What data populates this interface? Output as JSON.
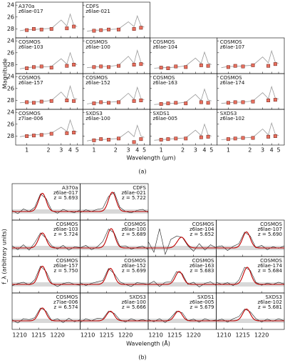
{
  "figure_a": {
    "xlabel": "Wavelength (μm)",
    "ylabel": "Magnitude",
    "caption": "(a)",
    "xlim": [
      0.7,
      6
    ],
    "ylim": [
      23.5,
      29.5
    ],
    "invert_y": true,
    "log_x": true,
    "xticks": [
      1,
      2,
      3,
      4,
      5
    ],
    "yticks": [
      24,
      26,
      28
    ],
    "phot_wavelength": [
      1.0,
      1.25,
      1.6,
      2.2,
      3.6,
      4.5
    ],
    "model_wavelength": [
      0.8,
      1.0,
      1.25,
      1.6,
      2.2,
      3.0,
      3.6,
      4.0,
      4.5,
      5.0
    ],
    "point_color": "#e8705f",
    "model_color": "#9a9a9a"
  },
  "figure_b": {
    "xlabel": "Wavelength (Å)",
    "ylabel": "f_λ (arbitrary units)",
    "caption": "(b)",
    "xlim": [
      1208,
      1226
    ],
    "ylim": [
      -0.4,
      1.3
    ],
    "xticks": [
      1210,
      1215,
      1220
    ],
    "spec_wavelength": [
      1208,
      1209.5,
      1211,
      1212.5,
      1214,
      1215.5,
      1217,
      1218.5,
      1220,
      1221.5,
      1223,
      1224.5,
      1226
    ],
    "spec_color": "#222222",
    "fit_color": "#c00000"
  },
  "panels": [
    {
      "field": "A370a",
      "id": "z6lae-017",
      "z": "z = 5.693",
      "mag": [
        28.2,
        28.0,
        28.1,
        28.0,
        27.9,
        27.6
      ],
      "model": [
        28.3,
        28.1,
        28.1,
        28.0,
        27.9,
        26.5,
        27.5,
        25.5,
        27.4,
        27.6
      ],
      "flux": [
        0.05,
        -0.1,
        0.12,
        0.0,
        0.2,
        0.82,
        0.6,
        0.05,
        -0.08,
        0.1,
        0.0,
        -0.05,
        0.08
      ],
      "fit_center": 1216.0,
      "fit_amplitude": 0.85,
      "fit_width": 1.0
    },
    {
      "field": "CDFS",
      "id": "z6lae-021",
      "z": "z = 5.722",
      "mag": [
        28.3,
        28.2,
        28.1,
        28.1,
        28.0,
        27.8
      ],
      "model": [
        28.4,
        28.2,
        28.2,
        28.1,
        28.0,
        26.8,
        27.6,
        25.8,
        27.5,
        27.7
      ],
      "flux": [
        -0.05,
        0.08,
        0.0,
        0.1,
        0.15,
        0.7,
        0.9,
        0.2,
        0.0,
        -0.06,
        0.05,
        0.1,
        -0.04
      ],
      "fit_center": 1216.5,
      "fit_amplitude": 0.9,
      "fit_width": 1.0
    },
    {
      "field": "COSMOS",
      "id": "z6lae-103",
      "z": "z = 5.724",
      "mag": [
        28.6,
        28.4,
        28.3,
        28.5,
        28.2,
        28.0
      ],
      "model": [
        28.7,
        28.5,
        28.4,
        28.4,
        28.3,
        27.0,
        27.9,
        26.0,
        27.8,
        28.0
      ],
      "flux": [
        0.1,
        -0.08,
        0.15,
        -0.1,
        0.25,
        0.7,
        0.45,
        0.1,
        -0.05,
        0.12,
        -0.1,
        0.05,
        0.02
      ],
      "fit_center": 1216.0,
      "fit_amplitude": 0.7,
      "fit_width": 1.0
    },
    {
      "field": "COSMOS",
      "id": "z6lae-100",
      "z": "z = 5.689",
      "mag": [
        28.4,
        28.3,
        28.4,
        28.2,
        28.0,
        27.9
      ],
      "model": [
        28.5,
        28.4,
        28.3,
        28.3,
        28.1,
        26.6,
        27.8,
        25.6,
        27.6,
        27.9
      ],
      "flux": [
        0.0,
        0.12,
        -0.08,
        0.05,
        0.3,
        0.88,
        0.7,
        0.08,
        0.1,
        -0.05,
        0.02,
        0.08,
        -0.06
      ],
      "fit_center": 1216.2,
      "fit_amplitude": 0.9,
      "fit_width": 1.0
    },
    {
      "field": "COSMOS",
      "id": "z6lae-104",
      "z": "z = 5.652",
      "mag": [
        28.5,
        28.6,
        28.3,
        28.4,
        28.1,
        28.2
      ],
      "model": [
        28.6,
        28.5,
        28.5,
        28.4,
        28.2,
        26.9,
        27.8,
        25.9,
        27.7,
        28.0
      ],
      "flux": [
        0.3,
        -0.2,
        0.9,
        -0.3,
        0.4,
        0.55,
        0.5,
        0.1,
        -0.15,
        0.2,
        -0.1,
        0.15,
        0.0
      ],
      "fit_center": 1216.8,
      "fit_amplitude": 0.5,
      "fit_width": 1.1
    },
    {
      "field": "COSMOS",
      "id": "z6lae-107",
      "z": "z = 5.690",
      "mag": [
        28.4,
        28.2,
        28.3,
        28.1,
        28.2,
        27.9
      ],
      "model": [
        28.5,
        28.3,
        28.3,
        28.2,
        28.1,
        26.7,
        27.7,
        25.7,
        27.6,
        27.8
      ],
      "flux": [
        0.05,
        0.1,
        -0.12,
        0.08,
        0.2,
        0.74,
        0.55,
        0.0,
        0.12,
        -0.08,
        0.06,
        -0.02,
        0.1
      ],
      "fit_center": 1216.0,
      "fit_amplitude": 0.75,
      "fit_width": 1.0
    },
    {
      "field": "COSMOS",
      "id": "z6lae-157",
      "z": "z = 5.750",
      "mag": [
        28.3,
        28.4,
        28.2,
        28.1,
        28.0,
        28.1
      ],
      "model": [
        28.4,
        28.3,
        28.3,
        28.2,
        28.0,
        26.6,
        27.7,
        25.6,
        27.6,
        27.8
      ],
      "flux": [
        -0.06,
        0.04,
        0.1,
        -0.02,
        0.22,
        0.85,
        0.6,
        0.05,
        -0.1,
        0.04,
        0.1,
        0.0,
        -0.04
      ],
      "fit_center": 1216.0,
      "fit_amplitude": 0.85,
      "fit_width": 1.0
    },
    {
      "field": "COSMOS",
      "id": "z6lae-152",
      "z": "z = 5.699",
      "mag": [
        28.5,
        28.3,
        28.4,
        28.3,
        28.1,
        28.0
      ],
      "model": [
        28.6,
        28.4,
        28.4,
        28.3,
        28.2,
        26.8,
        27.8,
        25.8,
        27.7,
        27.9
      ],
      "flux": [
        0.08,
        -0.05,
        0.05,
        0.12,
        0.18,
        0.74,
        0.5,
        0.12,
        0.0,
        -0.1,
        0.08,
        0.05,
        0.0
      ],
      "fit_center": 1216.0,
      "fit_amplitude": 0.75,
      "fit_width": 1.0
    },
    {
      "field": "COSMOS",
      "id": "z6lae-163",
      "z": "z = 5.683",
      "mag": [
        28.6,
        28.5,
        28.4,
        28.5,
        28.3,
        28.4
      ],
      "model": [
        28.7,
        28.6,
        28.5,
        28.5,
        28.3,
        27.0,
        28.0,
        26.1,
        27.9,
        28.1
      ],
      "flux": [
        0.0,
        0.15,
        -0.1,
        0.1,
        0.12,
        0.6,
        0.5,
        0.0,
        0.1,
        -0.12,
        0.05,
        0.12,
        -0.05
      ],
      "fit_center": 1216.2,
      "fit_amplitude": 0.6,
      "fit_width": 1.0
    },
    {
      "field": "COSMOS",
      "id": "z6lae-174",
      "z": "z = 5.684",
      "mag": [
        28.4,
        28.3,
        28.3,
        28.2,
        28.0,
        27.9
      ],
      "model": [
        28.5,
        28.4,
        28.3,
        28.3,
        28.1,
        26.7,
        27.7,
        25.7,
        27.6,
        27.8
      ],
      "flux": [
        0.1,
        0.0,
        0.08,
        -0.06,
        0.2,
        0.8,
        0.65,
        0.1,
        -0.04,
        0.06,
        0.0,
        0.1,
        0.02
      ],
      "fit_center": 1216.2,
      "fit_amplitude": 0.8,
      "fit_width": 1.0
    },
    {
      "field": "COSMOS",
      "id": "z7lae-006",
      "z": "z = 6.574",
      "mag": [
        28.0,
        27.9,
        27.8,
        27.6,
        27.5,
        27.4
      ],
      "model": [
        28.1,
        27.9,
        27.8,
        27.7,
        27.5,
        26.5,
        27.2,
        25.3,
        27.1,
        27.3
      ],
      "flux": [
        0.05,
        -0.1,
        0.1,
        0.05,
        0.15,
        0.6,
        0.45,
        0.0,
        0.1,
        -0.08,
        0.12,
        -0.04,
        0.05
      ],
      "fit_center": 1216.0,
      "fit_amplitude": 0.6,
      "fit_width": 1.0
    },
    {
      "field": "SXDS3",
      "id": "z6lae-100",
      "z": "z = 5.666",
      "mag": [
        28.7,
        28.5,
        28.6,
        28.4,
        29.0,
        28.5
      ],
      "model": [
        28.8,
        28.6,
        28.6,
        28.5,
        28.4,
        27.2,
        28.1,
        26.2,
        28.0,
        28.2
      ],
      "flux": [
        -0.08,
        0.1,
        0.0,
        0.12,
        0.1,
        0.45,
        0.35,
        0.05,
        -0.05,
        0.1,
        0.0,
        0.06,
        -0.02
      ],
      "fit_center": 1216.0,
      "fit_amplitude": 0.45,
      "fit_width": 1.0
    },
    {
      "field": "SXDS1",
      "id": "z6lae-005",
      "z": "z = 5.679",
      "mag": [
        28.6,
        28.5,
        28.4,
        28.4,
        28.2,
        28.1
      ],
      "model": [
        28.7,
        28.6,
        28.5,
        28.4,
        28.3,
        27.0,
        27.9,
        26.0,
        27.8,
        28.0
      ],
      "flux": [
        0.06,
        -0.04,
        0.1,
        -0.08,
        0.15,
        0.45,
        0.38,
        0.0,
        0.08,
        -0.06,
        0.1,
        0.0,
        0.04
      ],
      "fit_center": 1216.0,
      "fit_amplitude": 0.45,
      "fit_width": 1.0
    },
    {
      "field": "SXDS3",
      "id": "z6lae-102",
      "z": "z = 5.681",
      "mag": [
        28.5,
        28.4,
        28.3,
        28.3,
        28.1,
        28.0
      ],
      "model": [
        28.6,
        28.5,
        28.4,
        28.3,
        28.2,
        26.8,
        27.8,
        25.8,
        27.7,
        27.9
      ],
      "flux": [
        0.0,
        0.08,
        -0.06,
        0.1,
        0.2,
        0.55,
        0.42,
        0.1,
        -0.05,
        0.08,
        -0.02,
        0.1,
        0.0
      ],
      "fit_center": 1216.0,
      "fit_amplitude": 0.55,
      "fit_width": 1.0
    }
  ]
}
